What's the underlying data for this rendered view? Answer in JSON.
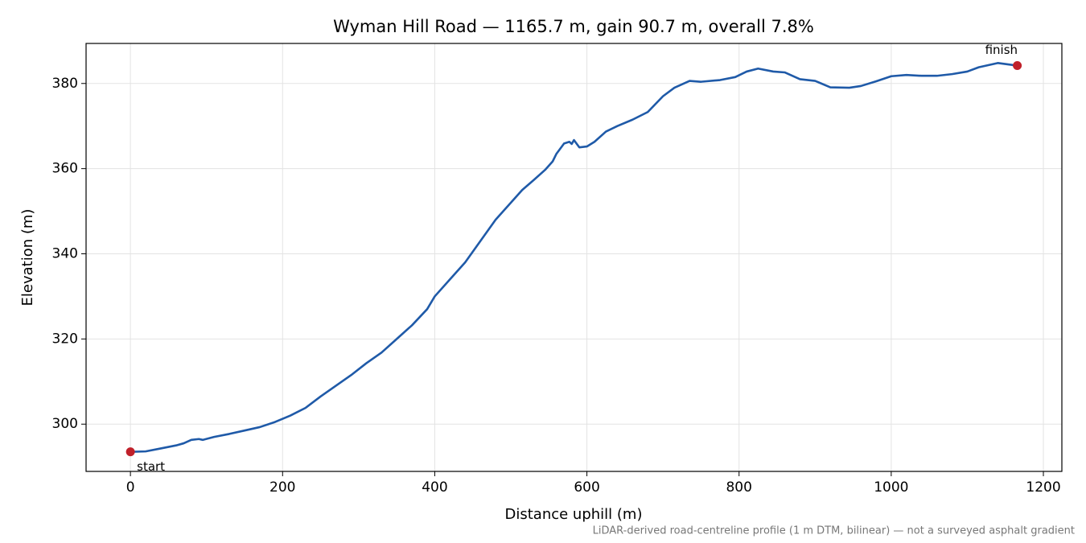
{
  "chart_data": {
    "type": "line",
    "title": "Wyman Hill Road — 1165.7 m, gain 90.7 m, overall 7.8%",
    "xlabel": "Distance uphill (m)",
    "ylabel": "Elevation (m)",
    "footnote": "LiDAR-derived road-centreline profile (1 m DTM, bilinear) — not a surveyed asphalt gradient",
    "color": "#1f5aa8",
    "x": [
      0,
      20,
      40,
      60,
      70,
      80,
      90,
      95,
      110,
      130,
      150,
      170,
      190,
      210,
      230,
      250,
      270,
      290,
      310,
      330,
      350,
      370,
      390,
      400,
      420,
      440,
      460,
      480,
      500,
      515,
      530,
      545,
      555,
      560,
      570,
      577,
      580,
      583,
      590,
      600,
      610,
      625,
      640,
      660,
      680,
      700,
      715,
      735,
      750,
      775,
      795,
      810,
      825,
      845,
      860,
      880,
      900,
      920,
      945,
      960,
      980,
      1000,
      1020,
      1040,
      1060,
      1080,
      1100,
      1115,
      1140,
      1165.7
    ],
    "values": [
      293.5,
      293.6,
      294.3,
      295.0,
      295.5,
      296.3,
      296.5,
      296.3,
      297.0,
      297.7,
      298.5,
      299.3,
      300.5,
      302.0,
      303.8,
      306.5,
      309.0,
      311.5,
      314.3,
      316.8,
      320.0,
      323.2,
      327.0,
      330.0,
      334.0,
      338.0,
      343.0,
      348.0,
      352.0,
      355.0,
      357.3,
      359.7,
      361.7,
      363.5,
      365.9,
      366.3,
      365.8,
      366.7,
      365.0,
      365.2,
      366.3,
      368.7,
      370.0,
      371.5,
      373.3,
      377.0,
      379.0,
      380.6,
      380.4,
      380.8,
      381.5,
      382.8,
      383.5,
      382.8,
      382.6,
      381.0,
      380.6,
      379.1,
      379.0,
      379.4,
      380.5,
      381.7,
      382.0,
      381.8,
      381.8,
      382.2,
      382.8,
      383.8,
      384.8,
      384.2
    ],
    "annotations": [
      {
        "text": "start",
        "x": 0,
        "y": 293.5
      },
      {
        "text": "finish",
        "x": 1165.7,
        "y": 384.2
      }
    ],
    "marker_color": "#c0202a",
    "xlim": [
      -58.3,
      1224.3
    ],
    "ylim": [
      288.9,
      389.4
    ],
    "xticks": [
      0,
      200,
      400,
      600,
      800,
      1000,
      1200
    ],
    "yticks": [
      300,
      320,
      340,
      360,
      380
    ],
    "grid": true
  }
}
